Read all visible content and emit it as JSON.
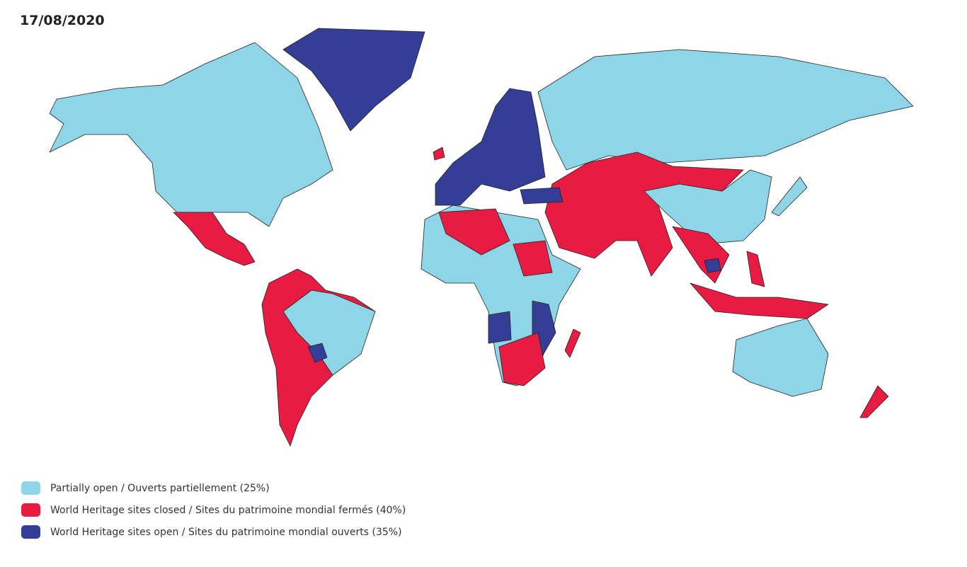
{
  "date": "17/08/2020",
  "legend": [
    {
      "label": "Partially open / Ouverts partiellement (25%)",
      "color": "#8dd5e7"
    },
    {
      "label": "World Heritage sites closed / Sites du patrimoine mondial fermés (40%)",
      "color": "#e81b43"
    },
    {
      "label": "World Heritage sites open / Sites du patrimoine mondial ouverts (35%)",
      "color": "#353e97"
    }
  ]
}
